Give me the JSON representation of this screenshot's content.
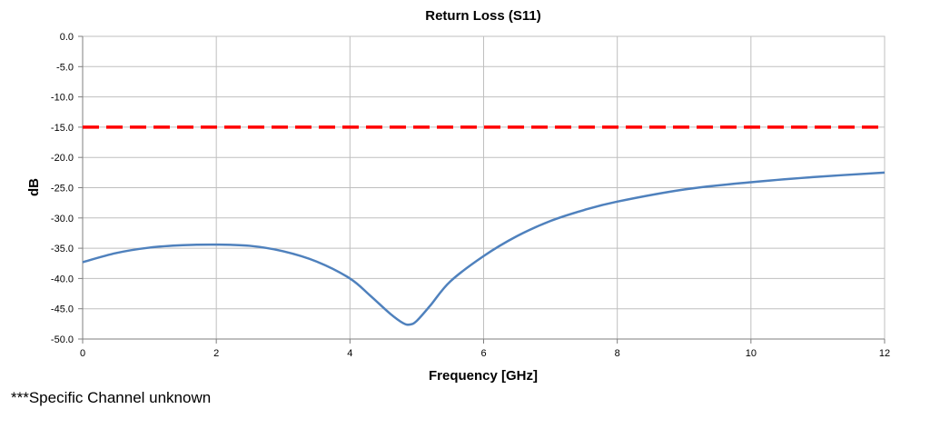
{
  "chart_data": {
    "type": "line",
    "title": "Return Loss (S11)",
    "xlabel": "Frequency [GHz]",
    "ylabel": "dB",
    "xlim": [
      0,
      12
    ],
    "ylim": [
      -50,
      0
    ],
    "x_ticks": [
      "0",
      "2",
      "4",
      "6",
      "8",
      "10",
      "12"
    ],
    "y_ticks": [
      "0.0",
      "-5.0",
      "-10.0",
      "-15.0",
      "-20.0",
      "-25.0",
      "-30.0",
      "-35.0",
      "-40.0",
      "-45.0",
      "-50.0"
    ],
    "grid": true,
    "legend": false,
    "series": [
      {
        "color": "#4f81bd",
        "style": "solid",
        "x": [
          0,
          0.5,
          1,
          1.5,
          2,
          2.5,
          3,
          3.5,
          4,
          4.3,
          4.6,
          4.8,
          4.9,
          5.0,
          5.2,
          5.5,
          6,
          6.5,
          7,
          7.5,
          8,
          9,
          10,
          11,
          12
        ],
        "y": [
          -37.3,
          -35.8,
          -34.9,
          -34.5,
          -34.4,
          -34.6,
          -35.5,
          -37.2,
          -40.0,
          -42.8,
          -45.8,
          -47.4,
          -47.6,
          -47.0,
          -44.5,
          -40.5,
          -36.3,
          -33.0,
          -30.5,
          -28.7,
          -27.3,
          -25.3,
          -24.1,
          -23.2,
          -22.5
        ]
      },
      {
        "color": "#ff0000",
        "style": "dashed",
        "x": [
          0,
          12
        ],
        "y": [
          -15,
          -15
        ]
      }
    ]
  },
  "footnote": "***Specific Channel unknown"
}
